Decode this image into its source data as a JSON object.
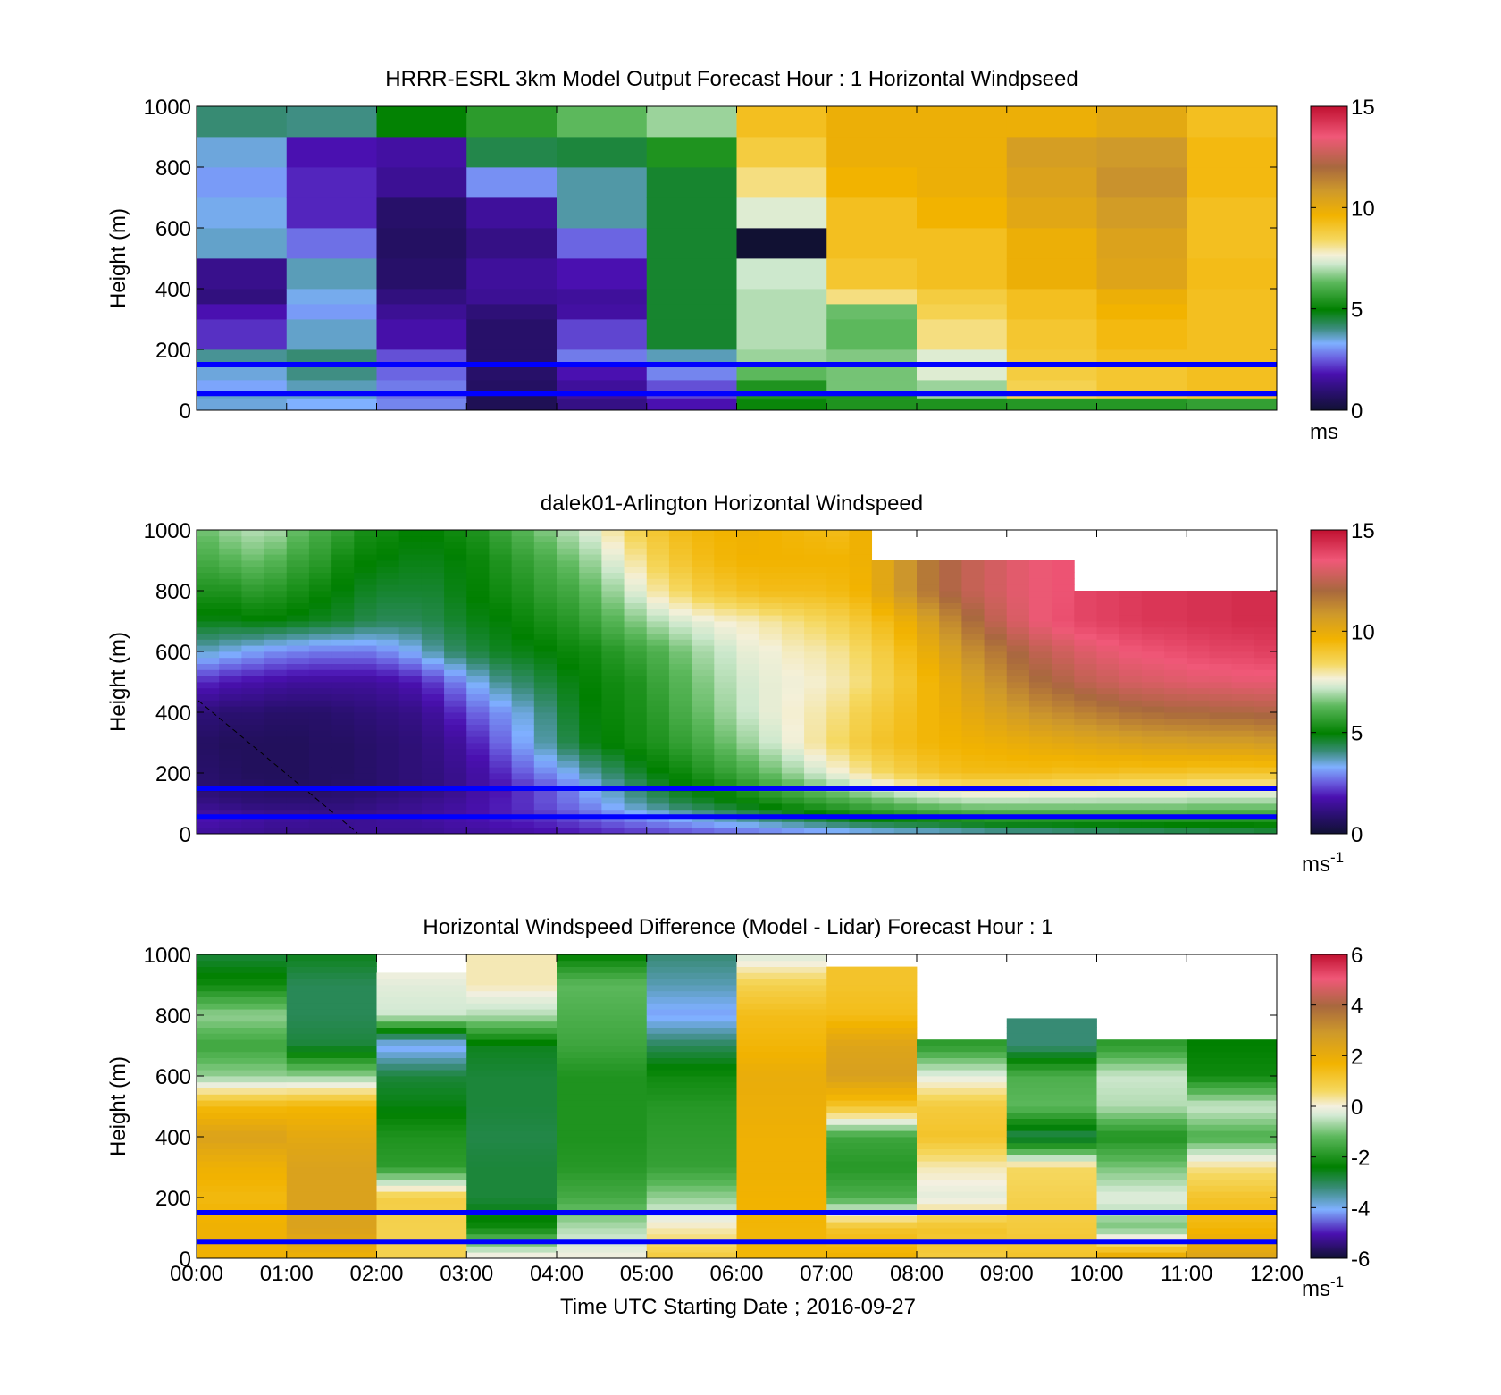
{
  "figure": {
    "xlabel": "Time UTC  Starting Date ; 2016-09-27",
    "x_ticks": [
      "00:00",
      "01:00",
      "02:00",
      "03:00",
      "04:00",
      "05:00",
      "06:00",
      "07:00",
      "08:00",
      "09:00",
      "10:00",
      "11:00",
      "12:00"
    ],
    "ylabel": "Height (m)"
  },
  "chart_data": [
    {
      "type": "heatmap",
      "title": "HRRR-ESRL 3km Model Output   Forecast Hour : 1 Horizontal Windpseed",
      "ylabel": "Height (m)",
      "ylim": [
        0,
        1000
      ],
      "y_ticks": [
        "0",
        "200",
        "400",
        "600",
        "800",
        "1000"
      ],
      "xlim_hours": [
        0,
        12
      ],
      "colorbar": {
        "min": 0,
        "max": 15,
        "ticks": [
          "0",
          "5",
          "10",
          "15"
        ],
        "unit": "ms",
        "unit_sup": "",
        "colormap": "wind"
      },
      "reference_lines_m": [
        150,
        55
      ],
      "x_hours": [
        0,
        1,
        2,
        3,
        4,
        5,
        6,
        7,
        8,
        9,
        10,
        11
      ],
      "y_heights_m": [
        0,
        40,
        60,
        100,
        150,
        200,
        300,
        350,
        400,
        500,
        600,
        700,
        800,
        900,
        1000
      ],
      "values": [
        [
          3.5,
          3.6,
          3.2,
          3.5,
          3.9,
          2.1,
          1.8,
          1.1,
          1.3,
          3.6,
          3.4,
          3.1,
          3.5,
          4.1,
          null
        ],
        [
          3.3,
          3.6,
          3.7,
          4.0,
          4.1,
          3.6,
          3.1,
          3.4,
          3.7,
          2.7,
          2.0,
          2.0,
          1.8,
          4.0,
          null
        ],
        [
          2.9,
          2.7,
          2.8,
          2.6,
          2.4,
          1.7,
          1.4,
          1.1,
          0.8,
          0.7,
          0.8,
          1.4,
          1.6,
          5.0,
          null
        ],
        [
          0.5,
          0.5,
          0.7,
          0.8,
          0.8,
          0.8,
          1.0,
          1.4,
          1.5,
          1.2,
          1.5,
          3.0,
          4.4,
          5.6,
          null
        ],
        [
          1.2,
          1.5,
          1.5,
          1.8,
          2.8,
          2.3,
          1.6,
          1.5,
          1.8,
          2.6,
          3.8,
          3.8,
          4.5,
          6.3,
          null
        ],
        [
          1.8,
          2.3,
          2.4,
          2.9,
          3.7,
          4.6,
          4.6,
          4.6,
          4.6,
          4.6,
          4.6,
          4.6,
          5.4,
          6.8,
          null
        ],
        [
          5.1,
          5.4,
          5.4,
          6.3,
          6.8,
          7.0,
          7.0,
          7.0,
          7.2,
          0.0,
          7.4,
          8.2,
          8.8,
          9.2,
          null
        ],
        [
          5.4,
          5.4,
          6.5,
          6.5,
          6.6,
          6.3,
          6.4,
          8.2,
          9.0,
          9.2,
          9.2,
          9.6,
          9.8,
          9.8,
          null
        ],
        [
          5.4,
          6.8,
          6.8,
          7.4,
          7.4,
          8.2,
          8.6,
          8.8,
          9.2,
          9.2,
          9.6,
          9.8,
          9.8,
          9.8,
          null
        ],
        [
          5.5,
          8.6,
          8.6,
          8.8,
          8.9,
          9.0,
          9.2,
          9.2,
          9.8,
          9.8,
          10.2,
          10.4,
          10.6,
          9.8,
          null
        ],
        [
          5.5,
          8.8,
          9.0,
          9.0,
          9.2,
          9.4,
          9.6,
          9.8,
          10.3,
          10.4,
          10.7,
          11.0,
          10.8,
          10.1,
          null
        ],
        [
          5.7,
          9.0,
          9.2,
          9.2,
          9.2,
          9.2,
          9.2,
          9.2,
          9.3,
          9.2,
          9.2,
          9.4,
          9.4,
          9.2,
          null
        ]
      ]
    },
    {
      "type": "heatmap",
      "title": "dalek01-Arlington  Horizontal Windspeed",
      "ylabel": "Height (m)",
      "ylim": [
        0,
        1000
      ],
      "y_ticks": [
        "0",
        "200",
        "400",
        "600",
        "800",
        "1000"
      ],
      "xlim_hours": [
        0,
        12
      ],
      "colorbar": {
        "min": 0,
        "max": 15,
        "ticks": [
          "0",
          "5",
          "10",
          "15"
        ],
        "unit": "ms",
        "unit_sup": "-1",
        "colormap": "wind"
      },
      "reference_lines_m": [
        150,
        55
      ],
      "x_hours": [
        0,
        0.25,
        0.5,
        0.75,
        1,
        1.25,
        1.5,
        1.75,
        2,
        2.25,
        2.5,
        2.75,
        3,
        3.25,
        3.5,
        3.75,
        4,
        4.25,
        4.5,
        4.75,
        5,
        5.25,
        5.5,
        5.75,
        6,
        6.25,
        6.5,
        6.75,
        7,
        7.25,
        7.5,
        7.75,
        8,
        8.25,
        8.5,
        8.75,
        9,
        9.25,
        9.5,
        9.75,
        10,
        10.25,
        10.5,
        10.75,
        11,
        11.25,
        11.5,
        11.75
      ],
      "profile_heights_m": [
        0,
        50,
        100,
        150,
        200,
        300,
        400,
        500,
        600,
        700,
        800,
        900,
        1000
      ],
      "profiles": [
        [
          1.5,
          1.8,
          1.2,
          0.9,
          0.8,
          0.7,
          1.0,
          2.0,
          3.6,
          4.8,
          5.4,
          6.0,
          6.5
        ],
        [
          1.4,
          1.7,
          1.1,
          0.8,
          0.7,
          0.6,
          0.9,
          1.8,
          3.4,
          4.8,
          5.4,
          6.2,
          6.8
        ],
        [
          1.4,
          1.6,
          1.0,
          0.8,
          0.6,
          0.6,
          0.9,
          1.7,
          3.2,
          4.9,
          5.6,
          6.4,
          7.0
        ],
        [
          1.3,
          1.5,
          1.0,
          0.7,
          0.6,
          0.6,
          0.8,
          1.6,
          3.0,
          4.9,
          5.5,
          6.2,
          6.9
        ],
        [
          1.3,
          1.5,
          1.0,
          0.7,
          0.6,
          0.6,
          0.8,
          1.5,
          2.9,
          4.8,
          5.3,
          5.8,
          6.4
        ],
        [
          1.3,
          1.4,
          1.0,
          0.7,
          0.7,
          0.7,
          0.8,
          1.5,
          2.8,
          4.7,
          5.1,
          5.6,
          6.0
        ],
        [
          1.3,
          1.4,
          1.0,
          0.8,
          0.7,
          0.7,
          0.9,
          1.5,
          2.8,
          4.6,
          4.9,
          5.2,
          5.7
        ],
        [
          1.4,
          1.4,
          1.1,
          0.8,
          0.8,
          0.8,
          1.0,
          1.5,
          2.8,
          4.4,
          4.7,
          5.0,
          5.3
        ],
        [
          1.4,
          1.5,
          1.2,
          0.9,
          0.9,
          0.9,
          1.1,
          1.6,
          3.0,
          4.3,
          4.6,
          4.9,
          5.2
        ],
        [
          1.4,
          1.5,
          1.3,
          1.0,
          1.0,
          1.0,
          1.2,
          1.8,
          3.3,
          4.3,
          4.6,
          4.8,
          5.0
        ],
        [
          1.4,
          1.6,
          1.4,
          1.1,
          1.1,
          1.2,
          1.5,
          2.2,
          3.8,
          4.4,
          4.6,
          4.8,
          5.0
        ],
        [
          1.5,
          1.7,
          1.5,
          1.3,
          1.3,
          1.5,
          2.0,
          2.8,
          4.2,
          4.6,
          4.8,
          4.9,
          5.2
        ],
        [
          1.5,
          1.8,
          1.7,
          1.6,
          1.6,
          2.0,
          2.6,
          3.4,
          4.5,
          4.8,
          5.0,
          5.1,
          5.4
        ],
        [
          1.6,
          1.9,
          1.9,
          1.8,
          2.0,
          2.6,
          3.0,
          3.9,
          4.7,
          4.9,
          5.2,
          5.4,
          5.8
        ],
        [
          1.6,
          2.0,
          2.1,
          2.1,
          2.5,
          3.2,
          3.5,
          4.2,
          4.8,
          5.1,
          5.4,
          5.7,
          6.2
        ],
        [
          1.7,
          2.1,
          2.4,
          2.4,
          2.9,
          3.8,
          4.0,
          4.5,
          4.9,
          5.3,
          5.7,
          6.0,
          6.6
        ],
        [
          1.8,
          2.3,
          2.7,
          2.8,
          3.3,
          4.4,
          4.6,
          4.8,
          5.1,
          5.5,
          5.9,
          6.4,
          7.0
        ],
        [
          1.9,
          2.5,
          3.0,
          3.3,
          3.8,
          4.8,
          4.9,
          5.0,
          5.2,
          5.8,
          6.3,
          6.8,
          7.4
        ],
        [
          2.0,
          2.7,
          3.4,
          3.7,
          4.2,
          5.0,
          5.1,
          5.2,
          5.5,
          6.2,
          6.8,
          7.4,
          8.0
        ],
        [
          2.1,
          2.9,
          3.8,
          4.1,
          4.6,
          5.2,
          5.3,
          5.4,
          5.8,
          6.6,
          7.4,
          8.0,
          8.6
        ],
        [
          2.2,
          3.1,
          4.1,
          4.5,
          4.9,
          5.4,
          5.6,
          5.8,
          6.1,
          7.0,
          8.0,
          8.6,
          9.0
        ],
        [
          2.3,
          3.3,
          4.4,
          4.8,
          5.1,
          5.7,
          6.0,
          6.2,
          6.5,
          7.3,
          8.4,
          9.0,
          9.3
        ],
        [
          2.4,
          3.5,
          4.6,
          5.0,
          5.4,
          6.0,
          6.4,
          6.6,
          6.9,
          7.5,
          8.8,
          9.3,
          9.5
        ],
        [
          2.5,
          3.7,
          4.8,
          5.2,
          5.7,
          6.4,
          6.8,
          7.0,
          7.2,
          7.7,
          9.0,
          9.5,
          9.6
        ],
        [
          2.6,
          3.9,
          5.0,
          5.5,
          6.0,
          6.8,
          7.2,
          7.3,
          7.5,
          7.8,
          9.2,
          9.6,
          9.7
        ],
        [
          2.7,
          4.1,
          5.2,
          5.8,
          6.4,
          7.2,
          7.5,
          7.5,
          7.6,
          8.0,
          9.3,
          9.6,
          9.6
        ],
        [
          2.8,
          4.3,
          5.4,
          6.1,
          6.8,
          7.6,
          7.7,
          7.6,
          7.8,
          8.2,
          9.3,
          9.6,
          9.5
        ],
        [
          2.9,
          4.5,
          5.6,
          6.4,
          7.2,
          8.0,
          7.9,
          7.7,
          7.9,
          8.4,
          9.3,
          9.6,
          9.4
        ],
        [
          3.0,
          4.7,
          5.8,
          6.7,
          7.6,
          8.4,
          8.2,
          7.9,
          8.1,
          8.6,
          9.4,
          9.6,
          9.3
        ],
        [
          3.1,
          4.9,
          6.0,
          7.0,
          8.0,
          8.8,
          8.6,
          8.2,
          8.4,
          8.9,
          9.6,
          9.7,
          null
        ],
        [
          3.2,
          5.0,
          6.2,
          7.3,
          8.4,
          9.1,
          8.9,
          8.6,
          8.8,
          9.3,
          10.2,
          null,
          null
        ],
        [
          3.3,
          5.1,
          6.4,
          7.6,
          8.7,
          9.3,
          9.2,
          9.0,
          9.3,
          9.8,
          10.9,
          null,
          null
        ],
        [
          3.3,
          5.2,
          6.6,
          7.8,
          9.0,
          9.5,
          9.5,
          9.5,
          9.9,
          10.5,
          11.6,
          null,
          null
        ],
        [
          3.4,
          5.3,
          6.7,
          8.0,
          9.2,
          9.6,
          9.8,
          10.0,
          10.5,
          11.2,
          12.2,
          null,
          null
        ],
        [
          3.5,
          5.4,
          6.8,
          8.1,
          9.3,
          9.7,
          10.1,
          10.5,
          11.1,
          11.9,
          12.6,
          null,
          null
        ],
        [
          3.6,
          5.5,
          6.8,
          8.1,
          9.3,
          9.8,
          10.4,
          11.0,
          11.6,
          12.5,
          12.9,
          null,
          null
        ],
        [
          3.7,
          5.5,
          6.8,
          8.1,
          9.3,
          9.9,
          10.7,
          11.5,
          12.1,
          13.0,
          13.2,
          null,
          null
        ],
        [
          3.7,
          5.5,
          6.8,
          8.0,
          9.3,
          10.0,
          11.0,
          11.9,
          12.5,
          13.4,
          13.4,
          null,
          null
        ],
        [
          3.8,
          5.5,
          6.8,
          8.0,
          9.2,
          10.1,
          11.2,
          12.2,
          12.8,
          13.7,
          13.6,
          null,
          null
        ],
        [
          3.9,
          5.5,
          6.8,
          8.0,
          9.2,
          10.2,
          11.4,
          12.5,
          13.1,
          13.9,
          null,
          null,
          null
        ],
        [
          3.9,
          5.5,
          6.8,
          7.9,
          9.2,
          10.3,
          11.6,
          12.7,
          13.3,
          14.0,
          null,
          null,
          null
        ],
        [
          4.0,
          5.5,
          6.8,
          7.9,
          9.1,
          10.4,
          11.8,
          12.9,
          13.5,
          14.1,
          null,
          null,
          null
        ],
        [
          4.0,
          5.5,
          6.8,
          7.9,
          9.1,
          10.5,
          11.9,
          13.0,
          13.6,
          14.2,
          null,
          null,
          null
        ],
        [
          4.1,
          5.5,
          6.8,
          7.9,
          9.1,
          10.5,
          12.0,
          13.1,
          13.7,
          14.2,
          null,
          null,
          null
        ],
        [
          4.1,
          5.5,
          6.7,
          7.8,
          9.0,
          10.6,
          12.0,
          13.2,
          13.8,
          14.3,
          null,
          null,
          null
        ],
        [
          4.2,
          5.5,
          6.7,
          7.8,
          9.0,
          10.6,
          12.1,
          13.2,
          13.9,
          14.3,
          null,
          null,
          null
        ],
        [
          4.2,
          5.5,
          6.7,
          7.8,
          9.0,
          10.6,
          12.1,
          13.3,
          13.9,
          14.4,
          null,
          null,
          null
        ],
        [
          4.3,
          5.5,
          6.7,
          7.8,
          9.0,
          10.7,
          12.2,
          13.3,
          14.0,
          14.4,
          null,
          null,
          null
        ]
      ]
    },
    {
      "type": "heatmap",
      "title": "Horizontal Windspeed Difference (Model - Lidar) Forecast Hour : 1",
      "ylabel": "Height (m)",
      "xlabel": "Time UTC  Starting Date ; 2016-09-27",
      "ylim": [
        0,
        1000
      ],
      "y_ticks": [
        "0",
        "200",
        "400",
        "600",
        "800",
        "1000"
      ],
      "xlim_hours": [
        0,
        12
      ],
      "colorbar": {
        "min": -6,
        "max": 6,
        "ticks": [
          "-6",
          "-4",
          "-2",
          "0",
          "2",
          "4",
          "6"
        ],
        "unit": "ms",
        "unit_sup": "-1",
        "colormap": "diff"
      },
      "reference_lines_m": [
        150,
        55
      ],
      "x_hours": [
        0,
        1,
        2,
        3,
        4,
        5,
        6,
        7,
        8,
        9,
        10,
        11
      ],
      "column_top_m": [
        1000,
        1000,
        940,
        1000,
        1000,
        1000,
        1000,
        960,
        720,
        790,
        720,
        720
      ],
      "profile_heights_m": [
        0,
        100,
        200,
        300,
        400,
        500,
        600,
        700,
        800,
        900,
        1000
      ],
      "profiles": [
        [
          1.8,
          1.8,
          1.5,
          1.8,
          2.5,
          1.5,
          -0.8,
          -1.6,
          -0.8,
          -2.2,
          -2.8
        ],
        [
          1.8,
          2.5,
          2.5,
          2.5,
          2.2,
          1.6,
          -0.8,
          -2.8,
          -3.0,
          -3.0,
          -2.6
        ],
        [
          0.8,
          0.8,
          0.9,
          -1.8,
          -2.0,
          -2.5,
          -2.8,
          -4.2,
          -0.4,
          -0.2,
          0.2
        ],
        [
          0.2,
          -2.2,
          -2.8,
          -2.8,
          -2.9,
          -2.8,
          -2.8,
          -2.6,
          -0.6,
          0.2,
          0.2
        ],
        [
          0.0,
          -0.6,
          -1.5,
          -1.9,
          -2.0,
          -2.0,
          -2.0,
          -1.6,
          -1.4,
          -1.2,
          -2.4
        ],
        [
          1.0,
          0.2,
          -0.8,
          -1.7,
          -1.8,
          -1.9,
          -2.2,
          -3.0,
          -4.2,
          -3.6,
          -3.2
        ],
        [
          1.6,
          1.6,
          1.7,
          1.8,
          1.8,
          1.9,
          2.0,
          1.6,
          1.4,
          0.8,
          -0.3
        ],
        [
          1.8,
          1.2,
          -1.4,
          -1.9,
          -1.6,
          1.2,
          2.6,
          2.4,
          1.4,
          1.2,
          null
        ],
        [
          1.0,
          1.2,
          -0.2,
          0.2,
          1.2,
          1.0,
          -0.2,
          -1.8,
          null,
          null,
          null
        ],
        [
          1.2,
          1.0,
          0.8,
          0.6,
          -3.0,
          -1.2,
          -1.4,
          -3.2,
          null,
          null,
          null
        ],
        [
          2.2,
          -1.0,
          -0.2,
          -1.0,
          -2.0,
          -0.6,
          -0.4,
          -1.8,
          null,
          null,
          null
        ],
        [
          2.4,
          1.6,
          1.2,
          0.4,
          -1.4,
          -0.4,
          -2.2,
          -2.4,
          null,
          null,
          null
        ]
      ]
    }
  ]
}
